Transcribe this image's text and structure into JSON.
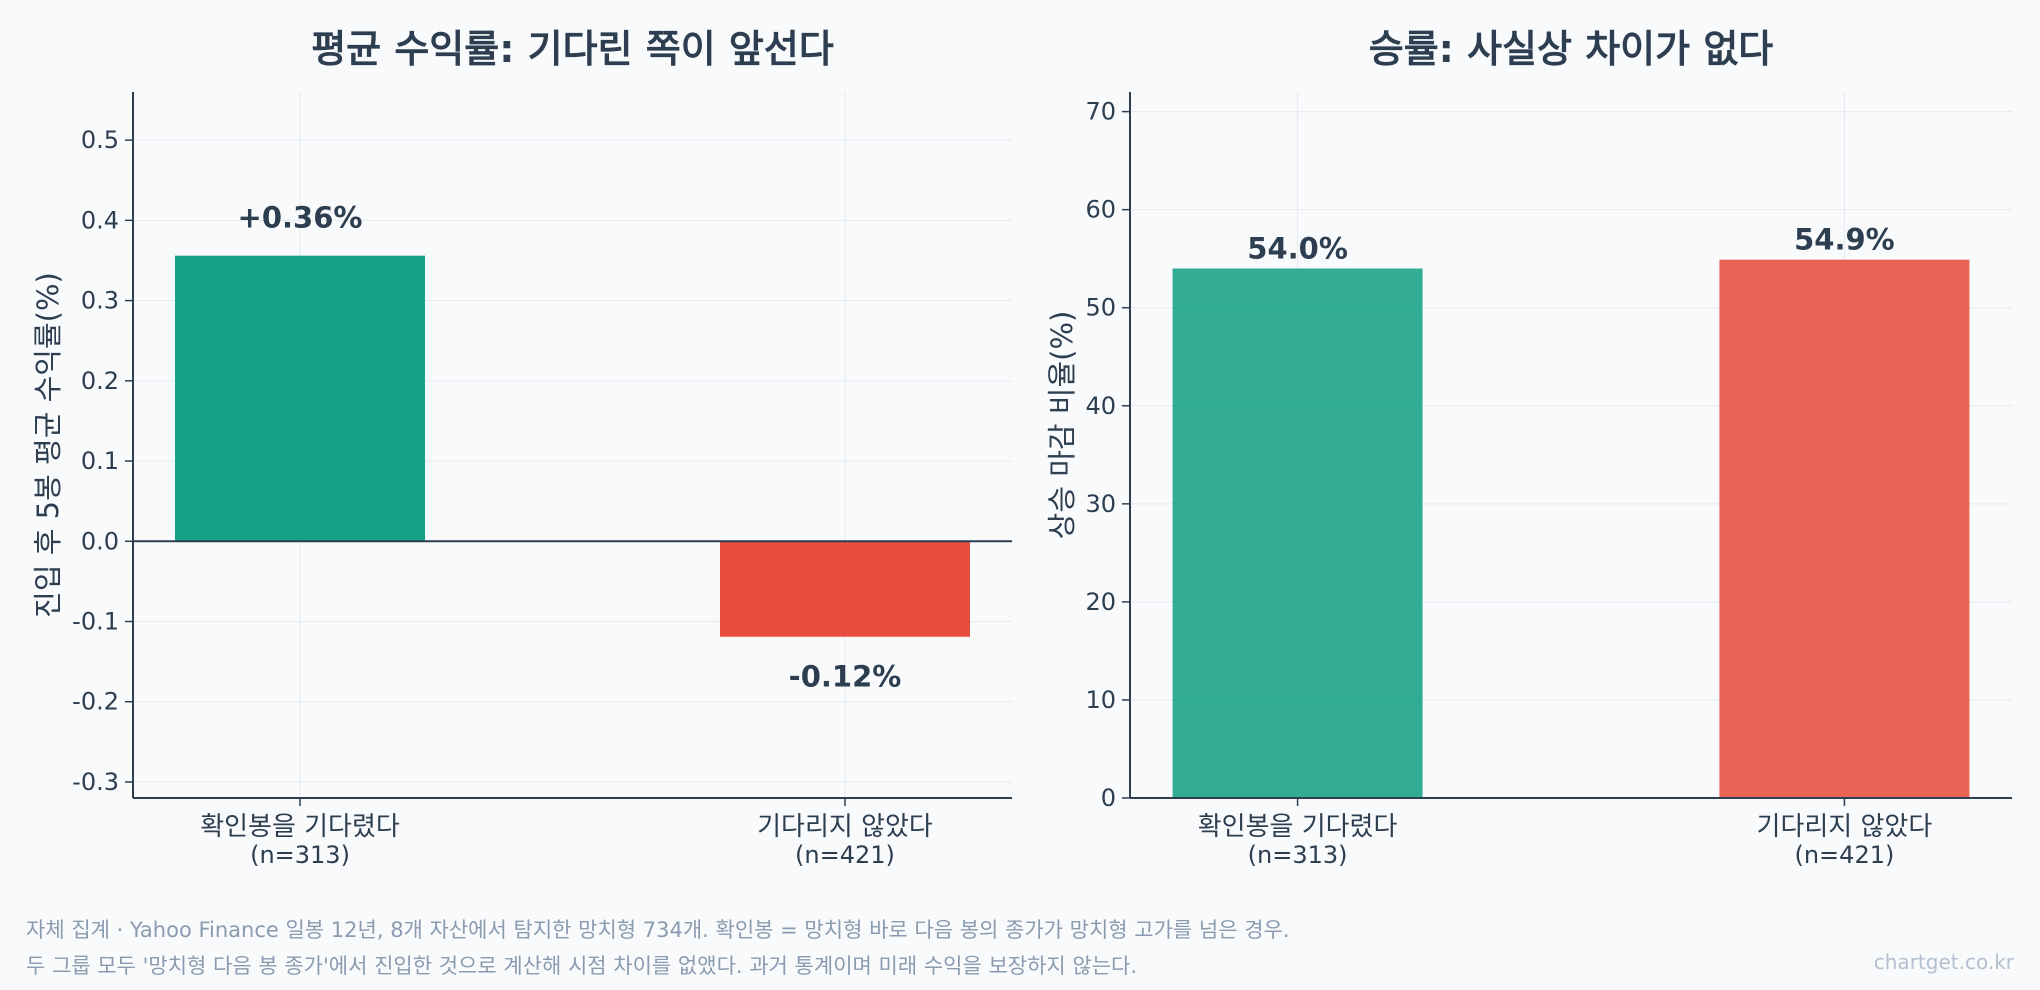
{
  "colors": {
    "waited": "#16a085",
    "not_waited": "#e74c3c",
    "axis": "#2c3e50",
    "grid": "#e6e9ee",
    "text": "#2c3e50",
    "footnote": "#8a9bb0"
  },
  "chart_data": [
    {
      "type": "bar",
      "title": "평균 수익률: 기다린 쪽이 앞선다",
      "ylabel": "진입 후 5봉 평균 수익률(%)",
      "categories": [
        "확인봉을 기다렸다",
        "기다리지 않았다"
      ],
      "category_notes": [
        "(n=313)",
        "(n=421)"
      ],
      "values": [
        0.356,
        -0.119
      ],
      "value_labels": [
        "+0.36%",
        "-0.12%"
      ],
      "ylim": [
        -0.32,
        0.56
      ],
      "yticks": [
        -0.3,
        -0.2,
        -0.1,
        0.0,
        0.1,
        0.2,
        0.3,
        0.4,
        0.5
      ],
      "ytick_labels": [
        "-0.3",
        "-0.2",
        "-0.1",
        "0.0",
        "0.1",
        "0.2",
        "0.3",
        "0.4",
        "0.5"
      ],
      "grid": true
    },
    {
      "type": "bar",
      "title": "승률: 사실상 차이가 없다",
      "ylabel": "상승 마감 비율(%)",
      "categories": [
        "확인봉을 기다렸다",
        "기다리지 않았다"
      ],
      "category_notes": [
        "(n=313)",
        "(n=421)"
      ],
      "values": [
        54.0,
        54.9
      ],
      "value_labels": [
        "54.0%",
        "54.9%"
      ],
      "ylim": [
        0,
        72
      ],
      "yticks": [
        0,
        10,
        20,
        30,
        40,
        50,
        60,
        70
      ],
      "ytick_labels": [
        "0",
        "10",
        "20",
        "30",
        "40",
        "50",
        "60",
        "70"
      ],
      "grid": true
    }
  ],
  "footnote": {
    "line1": "자체 집계 · Yahoo Finance 일봉 12년, 8개 자산에서 탐지한 망치형 734개. 확인봉 = 망치형 바로 다음 봉의 종가가 망치형 고가를 넘은 경우.",
    "line2": "두 그룹 모두 '망치형 다음 봉 종가'에서 진입한 것으로 계산해 시점 차이를 없앴다. 과거 통계이며 미래 수익을 보장하지 않는다.",
    "brand": "chartget.co.kr"
  }
}
